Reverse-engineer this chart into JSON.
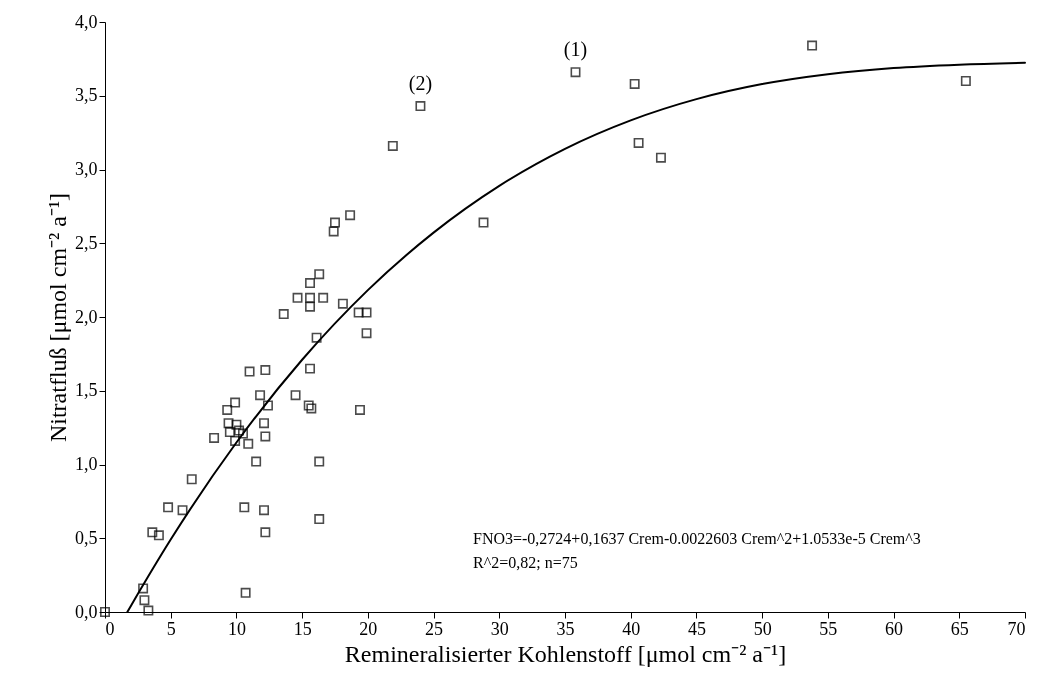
{
  "chart_data": {
    "type": "scatter",
    "xlabel": "Remineralisierter Kohlenstoff [μmol cm⁻² a⁻¹]",
    "ylabel": "Nitratfluß [μmol cm⁻² a⁻¹]",
    "xlim": [
      0,
      70
    ],
    "xticks": [
      0,
      5,
      10,
      15,
      20,
      25,
      30,
      35,
      40,
      45,
      50,
      55,
      60,
      65,
      70
    ],
    "ylim": [
      0,
      4
    ],
    "yticks": [
      {
        "value": 0,
        "label": "0,0"
      },
      {
        "value": 0.5,
        "label": "0,5"
      },
      {
        "value": 1,
        "label": "1,0"
      },
      {
        "value": 1.5,
        "label": "1,5"
      },
      {
        "value": 2,
        "label": "2,0"
      },
      {
        "value": 2.5,
        "label": "2,5"
      },
      {
        "value": 3,
        "label": "3,0"
      },
      {
        "value": 3.5,
        "label": "3,5"
      },
      {
        "value": 4,
        "label": "4,0"
      }
    ],
    "grid": false,
    "series": [
      {
        "color": "#000000",
        "marker": "square",
        "x": [
          0,
          2.9,
          3.0,
          3.3,
          3.6,
          4.1,
          4.8,
          5.9,
          6.6,
          8.3,
          9.3,
          9.9,
          9.4,
          10.0,
          9.5,
          9.9,
          10.5,
          10.9,
          10.2,
          10.6,
          10.7,
          11.0,
          11.5,
          11.8,
          12.2,
          12.1,
          12.4,
          12.2,
          12.1,
          12.2,
          18.65,
          17.5,
          17.4,
          16.3,
          15.6,
          14.65,
          15.6,
          16.6,
          15.6,
          13.6,
          18.1,
          19.3,
          19.9,
          19.9,
          16.1,
          15.6,
          14.5,
          15.5,
          15.7,
          19.4,
          16.3,
          16.3,
          24.0,
          21.9,
          35.8,
          40.3,
          53.8,
          65.5,
          40.6,
          42.3,
          28.8
        ],
        "values": [
          0,
          0.16,
          0.08,
          0.01,
          0.54,
          0.52,
          0.71,
          0.69,
          0.9,
          1.18,
          1.37,
          1.42,
          1.28,
          1.27,
          1.22,
          1.16,
          1.21,
          1.14,
          1.23,
          0.71,
          0.13,
          1.63,
          1.02,
          1.47,
          1.64,
          1.28,
          1.4,
          1.19,
          0.69,
          0.54,
          2.69,
          2.64,
          2.58,
          2.29,
          2.23,
          2.13,
          2.13,
          2.13,
          2.07,
          2.02,
          2.09,
          2.03,
          2.03,
          1.89,
          1.86,
          1.65,
          1.47,
          1.4,
          1.38,
          1.37,
          1.02,
          0.63,
          3.43,
          3.16,
          3.66,
          3.58,
          3.84,
          3.6,
          3.18,
          3.08,
          2.64
        ]
      },
      {
        "type": "line",
        "color": "#000000",
        "x": [
          1.7,
          2,
          5,
          10,
          15,
          20,
          25,
          30,
          35,
          40,
          45,
          50,
          55,
          60,
          65,
          70
        ],
        "values": [
          0,
          0.046,
          0.491,
          1.149,
          1.71,
          2.182,
          2.572,
          2.889,
          3.14,
          3.333,
          3.477,
          3.579,
          3.646,
          3.688,
          3.711,
          3.724
        ]
      }
    ],
    "annotations": [
      {
        "text": "(1)",
        "x": 35.8,
        "y": 3.66
      },
      {
        "text": "(2)",
        "x": 24.0,
        "y": 3.43
      },
      "FNO3=-0,2724+0,1637  Crem-0.0022603  Crem^2+1.0533e-5  Crem^3",
      "R^2=0,82;  n=75"
    ]
  }
}
